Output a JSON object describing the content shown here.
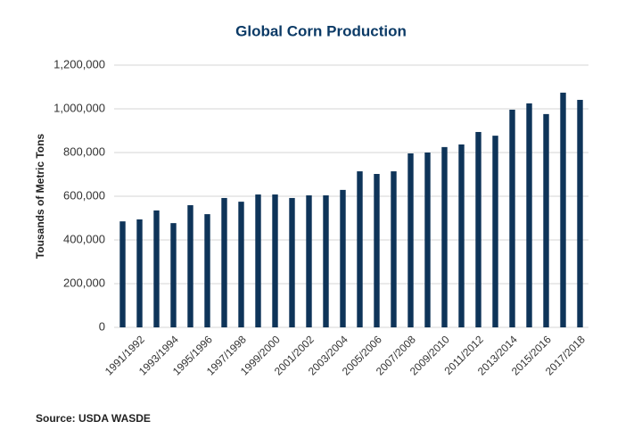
{
  "chart_data": {
    "type": "bar",
    "title": "Global Corn Production",
    "y_label": "Tousands of Metric Tons",
    "source": "Source: USDA WASDE",
    "categories": [
      null,
      "1991/1992",
      null,
      "1993/1994",
      null,
      "1995/1996",
      null,
      "1997/1998",
      null,
      "1999/2000",
      null,
      "2001/2002",
      null,
      "2003/2004",
      null,
      "2005/2006",
      null,
      "2007/2008",
      null,
      "2009/2010",
      null,
      "2011/2012",
      null,
      "2013/2014",
      null,
      "2015/2016",
      null,
      "2017/2018"
    ],
    "values": [
      485000,
      494000,
      535000,
      477000,
      559000,
      518000,
      592000,
      575000,
      608000,
      608000,
      592000,
      604000,
      604000,
      629000,
      714000,
      702000,
      714000,
      796000,
      800000,
      825000,
      837000,
      894000,
      877000,
      996000,
      1025000,
      976000,
      1074000,
      1041000
    ],
    "color": "#0e3459",
    "ylim": [
      0,
      1200000
    ],
    "yticks": [
      0,
      {
        "value": 200000,
        "label": "200,000"
      },
      {
        "value": 400000,
        "label": "400,000"
      },
      {
        "value": 600000,
        "label": "600,000"
      },
      {
        "value": 800000,
        "label": "800,000"
      },
      {
        "value": 1000000,
        "label": "1,000,000"
      },
      {
        "value": 1200000,
        "label": "1,200,000"
      }
    ],
    "grid": true
  }
}
